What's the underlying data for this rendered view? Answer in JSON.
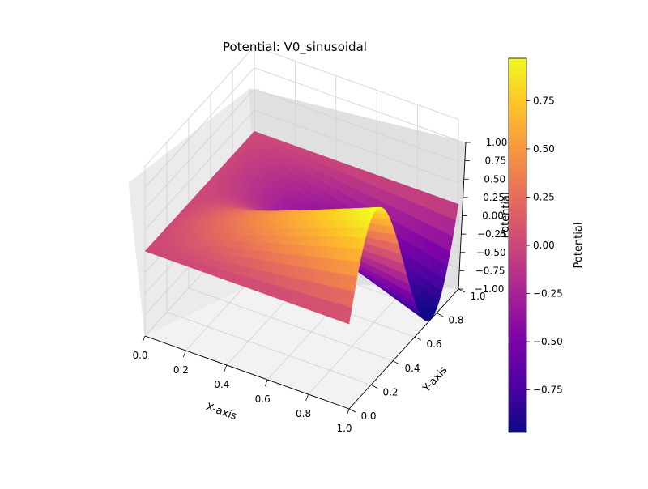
{
  "chart_data": {
    "type": "surface3d",
    "title": "Potential: V0_sinusoidal",
    "xlabel": "X-axis",
    "ylabel": "Y-axis",
    "zlabel": "Potential",
    "xlim": [
      0,
      1
    ],
    "ylim": [
      0,
      1
    ],
    "zlim": [
      -1,
      1
    ],
    "xticks": [
      "0.0",
      "0.2",
      "0.4",
      "0.6",
      "0.8",
      "1.0"
    ],
    "yticks": [
      "0.0",
      "0.2",
      "0.4",
      "0.6",
      "0.8",
      "1.0"
    ],
    "zticks": [
      "−1.00",
      "−0.75",
      "−0.50",
      "−0.25",
      "0.00",
      "0.25",
      "0.50",
      "0.75",
      "1.00"
    ],
    "colormap": "plasma",
    "surface": {
      "description_x": [
        0,
        0.2,
        0.4,
        0.6,
        0.8,
        1.0
      ],
      "at_x_1_over_y": {
        "y": [
          0,
          0.1,
          0.2,
          0.3,
          0.4,
          0.5,
          0.6,
          0.7,
          0.8,
          0.9,
          1.0
        ],
        "z": [
          0,
          0.59,
          0.95,
          0.95,
          0.59,
          0,
          -0.59,
          -0.95,
          -0.95,
          -0.59,
          0
        ]
      },
      "z_at_x_0": 0
    },
    "colorbar": {
      "label": "Potential",
      "range": [
        -0.97,
        0.97
      ],
      "ticks": [
        "−0.75",
        "−0.50",
        "−0.25",
        "0.00",
        "0.25",
        "0.50",
        "0.75"
      ],
      "tick_values": [
        -0.75,
        -0.5,
        -0.25,
        0,
        0.25,
        0.5,
        0.75
      ]
    },
    "grid": true
  }
}
